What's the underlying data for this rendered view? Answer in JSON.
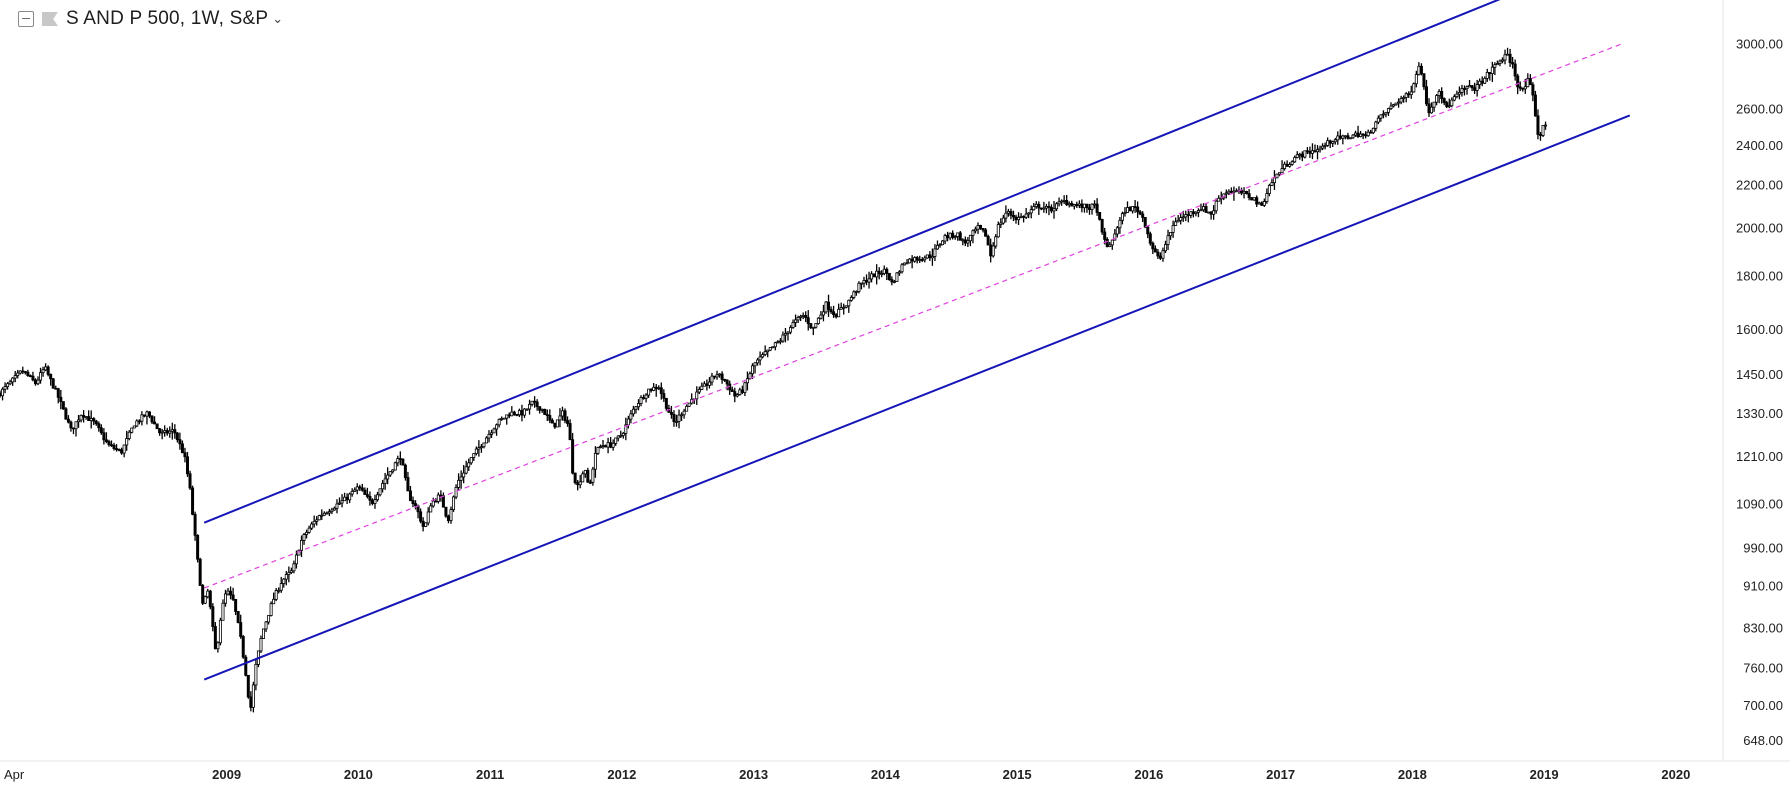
{
  "header": {
    "title": "S AND P 500, 1W, S&P",
    "collapse_icon": "collapse-minus-icon",
    "flag_icon": "flag-icon",
    "dropdown_icon": "chevron-down-icon"
  },
  "chart_data": {
    "type": "candlestick",
    "title": "S AND P 500, 1W, S&P",
    "scale": "log",
    "grid": false,
    "ylim": [
      620,
      3300
    ],
    "xlim": [
      2007.28,
      2020.35
    ],
    "y_ticks": [
      3000,
      2600,
      2400,
      2200,
      2000,
      1800,
      1600,
      1450,
      1330,
      1210,
      1090,
      990,
      910,
      830,
      760,
      700,
      648
    ],
    "y_tick_labels": [
      "3000.00",
      "2600.00",
      "2400.00",
      "2200.00",
      "2000.00",
      "1800.00",
      "1600.00",
      "1450.00",
      "1330.00",
      "1210.00",
      "1090.00",
      "990.00",
      "910.00",
      "830.00",
      "760.00",
      "700.00",
      "648.00"
    ],
    "x_ticks": [
      {
        "label": "Apr",
        "x": 2007.29
      },
      {
        "label": "2009",
        "x": 2009.0
      },
      {
        "label": "2010",
        "x": 2010.0
      },
      {
        "label": "2011",
        "x": 2011.0
      },
      {
        "label": "2012",
        "x": 2012.0
      },
      {
        "label": "2013",
        "x": 2013.0
      },
      {
        "label": "2014",
        "x": 2014.0
      },
      {
        "label": "2015",
        "x": 2015.0
      },
      {
        "label": "2016",
        "x": 2016.0
      },
      {
        "label": "2017",
        "x": 2017.0
      },
      {
        "label": "2018",
        "x": 2018.0
      },
      {
        "label": "2019",
        "x": 2019.0
      },
      {
        "label": "2020",
        "x": 2020.0
      }
    ],
    "price_path": [
      [
        2007.28,
        1390
      ],
      [
        2007.45,
        1460
      ],
      [
        2007.55,
        1420
      ],
      [
        2007.62,
        1470
      ],
      [
        2007.72,
        1380
      ],
      [
        2007.82,
        1280
      ],
      [
        2007.9,
        1330
      ],
      [
        2008.0,
        1300
      ],
      [
        2008.1,
        1240
      ],
      [
        2008.2,
        1220
      ],
      [
        2008.3,
        1300
      ],
      [
        2008.4,
        1330
      ],
      [
        2008.5,
        1270
      ],
      [
        2008.6,
        1280
      ],
      [
        2008.68,
        1210
      ],
      [
        2008.72,
        1130
      ],
      [
        2008.78,
        960
      ],
      [
        2008.82,
        870
      ],
      [
        2008.86,
        900
      ],
      [
        2008.92,
        780
      ],
      [
        2008.96,
        860
      ],
      [
        2009.0,
        900
      ],
      [
        2009.05,
        880
      ],
      [
        2009.1,
        820
      ],
      [
        2009.14,
        760
      ],
      [
        2009.18,
        690
      ],
      [
        2009.22,
        760
      ],
      [
        2009.27,
        820
      ],
      [
        2009.35,
        880
      ],
      [
        2009.42,
        920
      ],
      [
        2009.5,
        940
      ],
      [
        2009.56,
        1000
      ],
      [
        2009.62,
        1030
      ],
      [
        2009.7,
        1060
      ],
      [
        2009.8,
        1080
      ],
      [
        2009.9,
        1100
      ],
      [
        2010.0,
        1130
      ],
      [
        2010.1,
        1090
      ],
      [
        2010.2,
        1150
      ],
      [
        2010.3,
        1200
      ],
      [
        2010.32,
        1210
      ],
      [
        2010.38,
        1110
      ],
      [
        2010.44,
        1080
      ],
      [
        2010.5,
        1030
      ],
      [
        2010.55,
        1090
      ],
      [
        2010.62,
        1110
      ],
      [
        2010.68,
        1050
      ],
      [
        2010.75,
        1140
      ],
      [
        2010.85,
        1200
      ],
      [
        2010.95,
        1250
      ],
      [
        2011.05,
        1300
      ],
      [
        2011.15,
        1330
      ],
      [
        2011.25,
        1330
      ],
      [
        2011.32,
        1360
      ],
      [
        2011.4,
        1340
      ],
      [
        2011.48,
        1290
      ],
      [
        2011.55,
        1330
      ],
      [
        2011.6,
        1290
      ],
      [
        2011.62,
        1180
      ],
      [
        2011.66,
        1130
      ],
      [
        2011.72,
        1180
      ],
      [
        2011.75,
        1120
      ],
      [
        2011.8,
        1220
      ],
      [
        2011.85,
        1240
      ],
      [
        2011.92,
        1240
      ],
      [
        2012.0,
        1270
      ],
      [
        2012.1,
        1350
      ],
      [
        2012.2,
        1400
      ],
      [
        2012.28,
        1410
      ],
      [
        2012.35,
        1340
      ],
      [
        2012.4,
        1300
      ],
      [
        2012.45,
        1330
      ],
      [
        2012.55,
        1380
      ],
      [
        2012.65,
        1420
      ],
      [
        2012.72,
        1450
      ],
      [
        2012.78,
        1430
      ],
      [
        2012.86,
        1380
      ],
      [
        2012.92,
        1400
      ],
      [
        2013.0,
        1480
      ],
      [
        2013.1,
        1520
      ],
      [
        2013.2,
        1560
      ],
      [
        2013.3,
        1620
      ],
      [
        2013.38,
        1650
      ],
      [
        2013.45,
        1600
      ],
      [
        2013.55,
        1690
      ],
      [
        2013.62,
        1650
      ],
      [
        2013.72,
        1700
      ],
      [
        2013.8,
        1760
      ],
      [
        2013.9,
        1800
      ],
      [
        2014.0,
        1820
      ],
      [
        2014.05,
        1770
      ],
      [
        2014.15,
        1860
      ],
      [
        2014.25,
        1870
      ],
      [
        2014.35,
        1880
      ],
      [
        2014.45,
        1960
      ],
      [
        2014.55,
        1970
      ],
      [
        2014.6,
        1930
      ],
      [
        2014.7,
        2000
      ],
      [
        2014.76,
        1970
      ],
      [
        2014.8,
        1880
      ],
      [
        2014.85,
        2000
      ],
      [
        2014.92,
        2070
      ],
      [
        2015.0,
        2040
      ],
      [
        2015.08,
        2060
      ],
      [
        2015.15,
        2100
      ],
      [
        2015.25,
        2080
      ],
      [
        2015.35,
        2120
      ],
      [
        2015.45,
        2100
      ],
      [
        2015.55,
        2090
      ],
      [
        2015.6,
        2100
      ],
      [
        2015.65,
        1960
      ],
      [
        2015.7,
        1910
      ],
      [
        2015.75,
        1990
      ],
      [
        2015.82,
        2080
      ],
      [
        2015.9,
        2090
      ],
      [
        2015.96,
        2040
      ],
      [
        2016.02,
        1920
      ],
      [
        2016.08,
        1860
      ],
      [
        2016.12,
        1920
      ],
      [
        2016.2,
        2030
      ],
      [
        2016.3,
        2060
      ],
      [
        2016.4,
        2090
      ],
      [
        2016.48,
        2060
      ],
      [
        2016.52,
        2130
      ],
      [
        2016.6,
        2170
      ],
      [
        2016.7,
        2160
      ],
      [
        2016.8,
        2130
      ],
      [
        2016.85,
        2090
      ],
      [
        2016.92,
        2200
      ],
      [
        2017.0,
        2270
      ],
      [
        2017.1,
        2330
      ],
      [
        2017.2,
        2360
      ],
      [
        2017.3,
        2380
      ],
      [
        2017.4,
        2430
      ],
      [
        2017.5,
        2440
      ],
      [
        2017.6,
        2460
      ],
      [
        2017.65,
        2440
      ],
      [
        2017.72,
        2520
      ],
      [
        2017.8,
        2580
      ],
      [
        2017.9,
        2650
      ],
      [
        2017.98,
        2680
      ],
      [
        2018.03,
        2810
      ],
      [
        2018.06,
        2870
      ],
      [
        2018.1,
        2650
      ],
      [
        2018.13,
        2580
      ],
      [
        2018.2,
        2720
      ],
      [
        2018.25,
        2600
      ],
      [
        2018.32,
        2660
      ],
      [
        2018.4,
        2720
      ],
      [
        2018.48,
        2720
      ],
      [
        2018.55,
        2780
      ],
      [
        2018.62,
        2850
      ],
      [
        2018.68,
        2900
      ],
      [
        2018.72,
        2920
      ],
      [
        2018.76,
        2860
      ],
      [
        2018.8,
        2740
      ],
      [
        2018.84,
        2700
      ],
      [
        2018.88,
        2770
      ],
      [
        2018.92,
        2650
      ],
      [
        2018.96,
        2420
      ],
      [
        2018.98,
        2480
      ],
      [
        2019.02,
        2520
      ]
    ],
    "channel_upper": [
      [
        2008.83,
        1045
      ],
      [
        2018.7,
        3320
      ]
    ],
    "channel_lower": [
      [
        2008.83,
        740
      ],
      [
        2019.65,
        2560
      ]
    ],
    "channel_mid": [
      [
        2008.83,
        905
      ],
      [
        2019.6,
        3000
      ]
    ],
    "colors": {
      "candles": "#000000",
      "channel": "#1515b8",
      "midline": "#e040e0",
      "axis_text": "#222222",
      "border": "#e6e6e6"
    }
  }
}
